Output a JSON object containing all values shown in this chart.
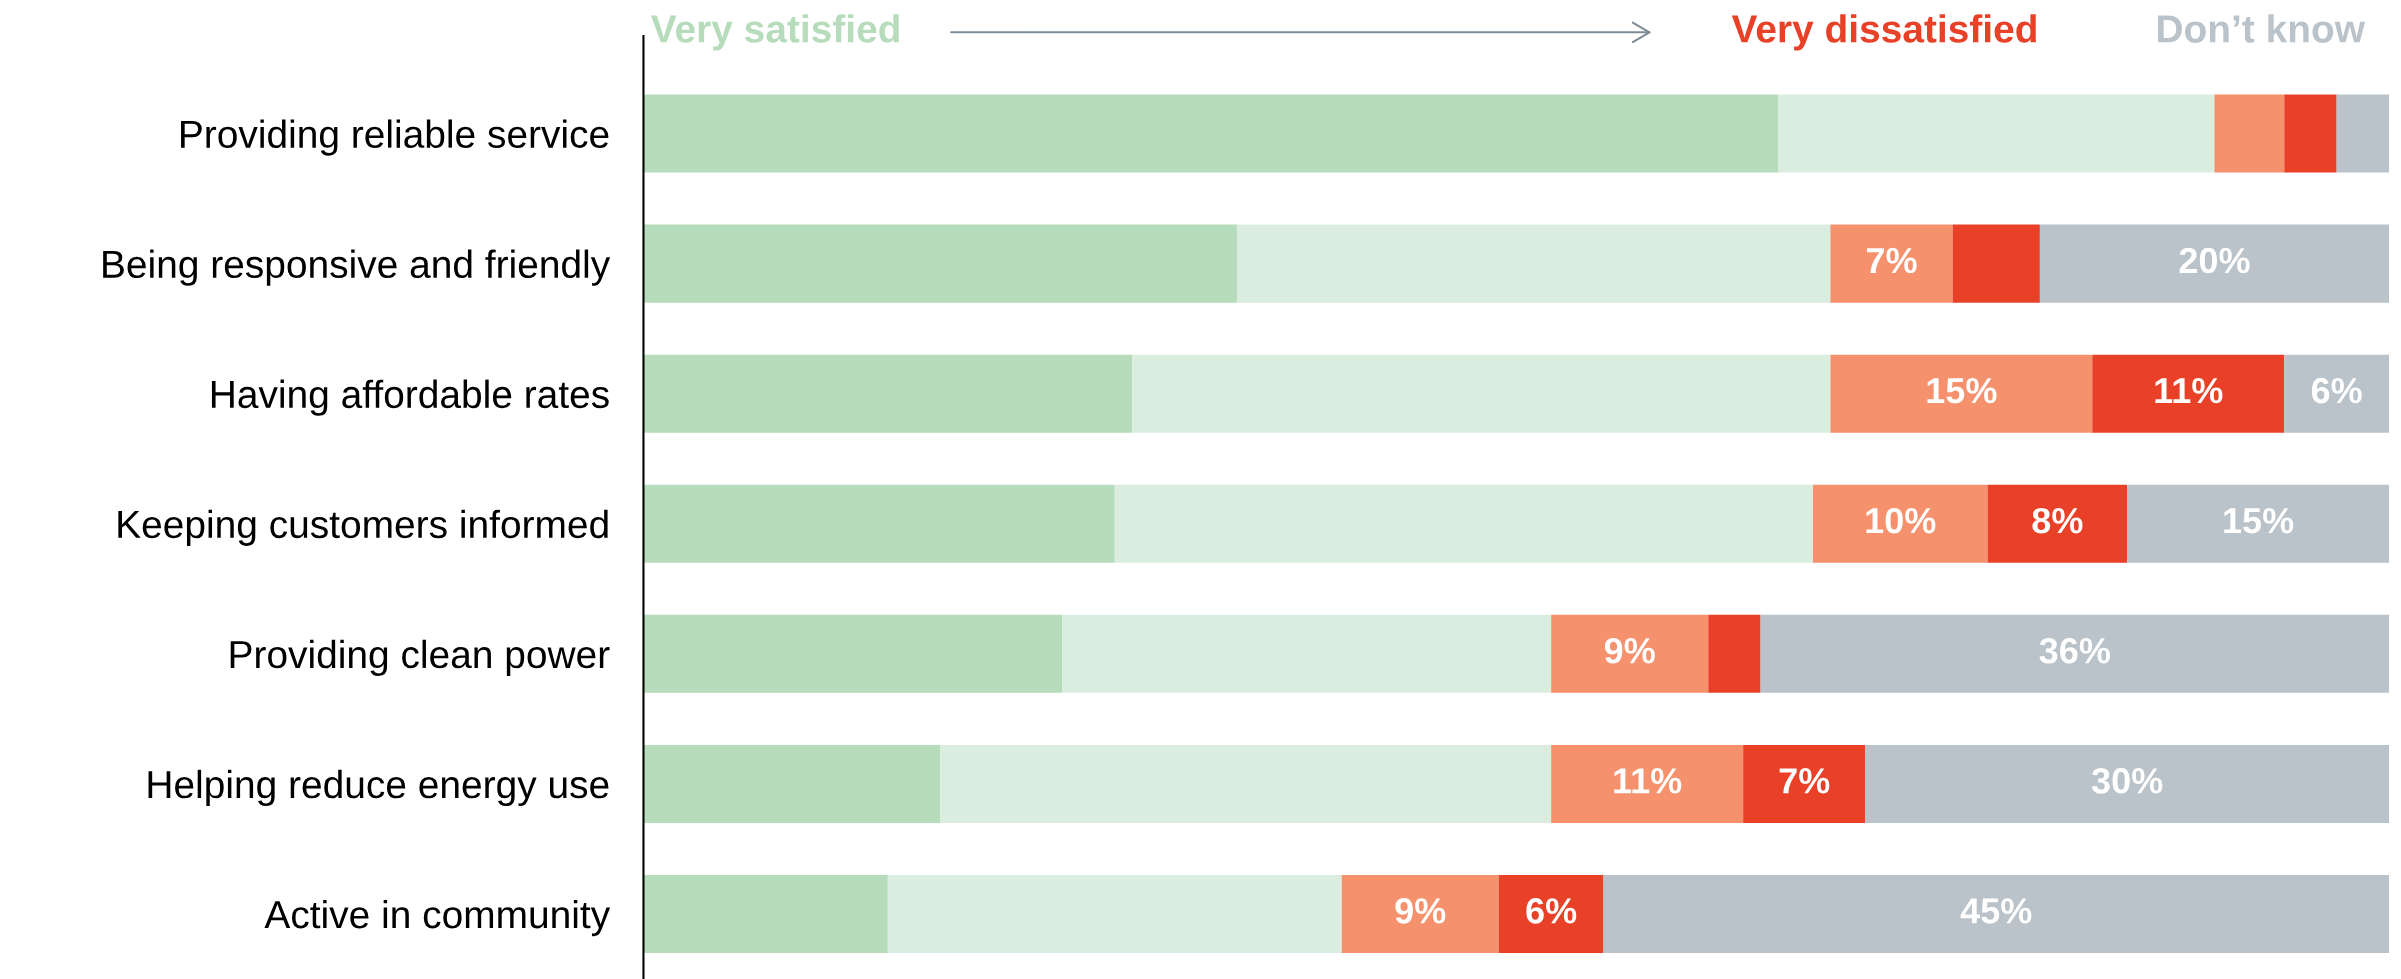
{
  "chart_data": {
    "type": "bar",
    "orientation": "horizontal",
    "stacked": true,
    "legend": "top",
    "tick_labels": "y",
    "xlim": [
      0,
      100
    ],
    "categories": [
      "Providing reliable service",
      "Being responsive and friendly",
      "Having affordable rates",
      "Keeping customers informed",
      "Providing clean power",
      "Helping reduce energy use",
      "Active in community"
    ],
    "series": [
      {
        "name": "Very satisfied",
        "color": "#b6dcbb",
        "values": [
          65,
          34,
          28,
          27,
          24,
          17,
          14
        ],
        "value_labels": [
          null,
          null,
          null,
          null,
          null,
          null,
          null
        ]
      },
      {
        "color": "#dbeddf",
        "values": [
          25,
          34,
          40,
          40,
          28,
          35,
          26
        ],
        "value_labels": [
          null,
          null,
          null,
          null,
          null,
          null,
          null
        ]
      },
      {
        "color": "#f5916c",
        "values": [
          4,
          7,
          15,
          10,
          9,
          11,
          9
        ],
        "value_labels": [
          null,
          "7%",
          "15%",
          "10%",
          "9%",
          "11%",
          "9%"
        ]
      },
      {
        "name": "Very dissatisfied",
        "color": "#e94128",
        "values": [
          3,
          5,
          11,
          8,
          3,
          7,
          6
        ],
        "value_labels": [
          null,
          null,
          "11%",
          "8%",
          null,
          "7%",
          "6%"
        ]
      },
      {
        "name": "Don’t know",
        "color": "#b9c3c9",
        "values": [
          3,
          20,
          6,
          15,
          36,
          30,
          45
        ],
        "value_labels": [
          null,
          "20%",
          "6%",
          "15%",
          "36%",
          "30%",
          "45%"
        ]
      }
    ]
  }
}
